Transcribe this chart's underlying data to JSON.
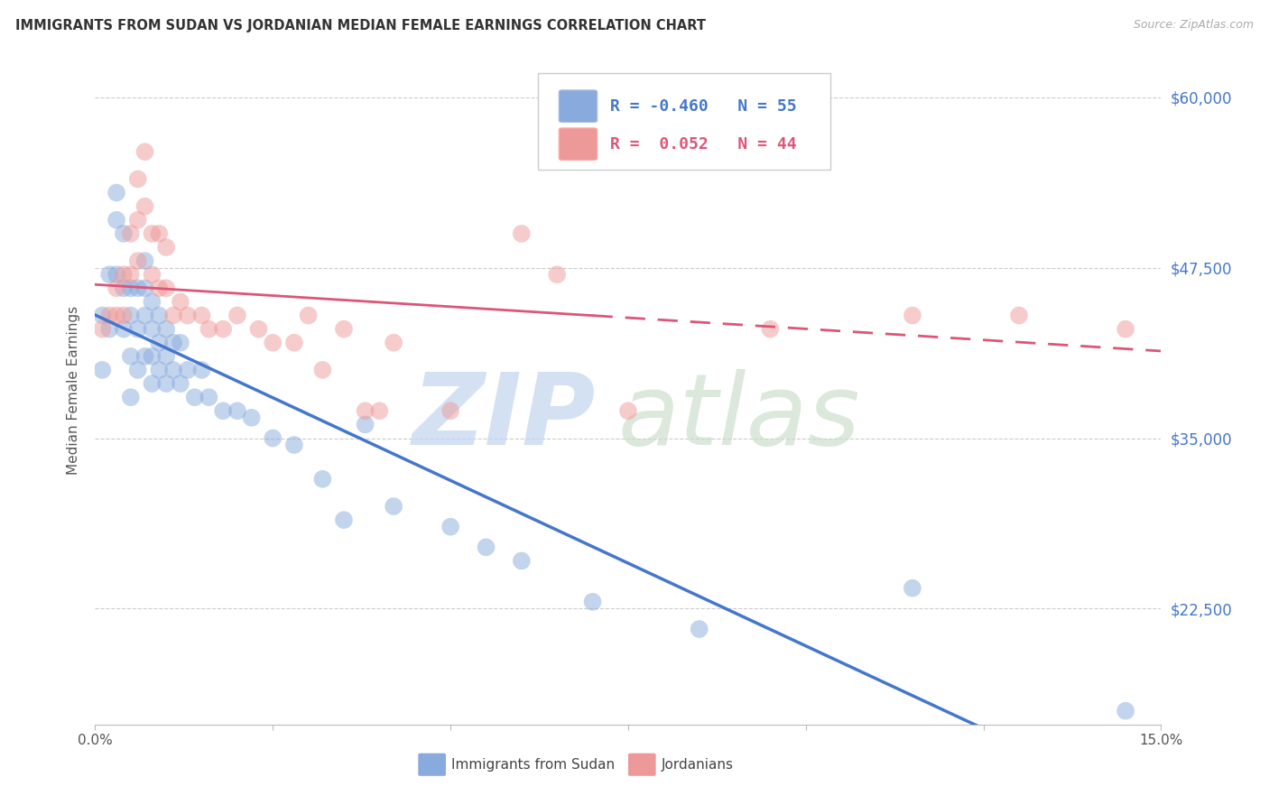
{
  "title": "IMMIGRANTS FROM SUDAN VS JORDANIAN MEDIAN FEMALE EARNINGS CORRELATION CHART",
  "source": "Source: ZipAtlas.com",
  "ylabel": "Median Female Earnings",
  "xlim": [
    0.0,
    0.15
  ],
  "ylim": [
    14000,
    63000
  ],
  "yticks_right": [
    22500,
    35000,
    47500,
    60000
  ],
  "yticklabels_right": [
    "$22,500",
    "$35,000",
    "$47,500",
    "$60,000"
  ],
  "grid_color": "#cccccc",
  "bg_color": "#ffffff",
  "blue_color": "#88aadd",
  "pink_color": "#ee9999",
  "blue_line_color": "#4477cc",
  "pink_line_color": "#dd5577",
  "legend_R1": "-0.460",
  "legend_N1": "55",
  "legend_R2": " 0.052",
  "legend_N2": "44",
  "blue_scatter_x": [
    0.001,
    0.001,
    0.002,
    0.002,
    0.003,
    0.003,
    0.003,
    0.004,
    0.004,
    0.004,
    0.005,
    0.005,
    0.005,
    0.005,
    0.006,
    0.006,
    0.006,
    0.007,
    0.007,
    0.007,
    0.007,
    0.008,
    0.008,
    0.008,
    0.008,
    0.009,
    0.009,
    0.009,
    0.01,
    0.01,
    0.01,
    0.011,
    0.011,
    0.012,
    0.012,
    0.013,
    0.014,
    0.015,
    0.016,
    0.018,
    0.02,
    0.022,
    0.025,
    0.028,
    0.032,
    0.035,
    0.038,
    0.042,
    0.05,
    0.055,
    0.06,
    0.07,
    0.085,
    0.115,
    0.145
  ],
  "blue_scatter_y": [
    44000,
    40000,
    47000,
    43000,
    53000,
    51000,
    47000,
    50000,
    46000,
    43000,
    46000,
    44000,
    41000,
    38000,
    46000,
    43000,
    40000,
    48000,
    46000,
    44000,
    41000,
    45000,
    43000,
    41000,
    39000,
    44000,
    42000,
    40000,
    43000,
    41000,
    39000,
    42000,
    40000,
    42000,
    39000,
    40000,
    38000,
    40000,
    38000,
    37000,
    37000,
    36500,
    35000,
    34500,
    32000,
    29000,
    36000,
    30000,
    28500,
    27000,
    26000,
    23000,
    21000,
    24000,
    15000
  ],
  "pink_scatter_x": [
    0.001,
    0.002,
    0.003,
    0.003,
    0.004,
    0.004,
    0.005,
    0.005,
    0.006,
    0.006,
    0.006,
    0.007,
    0.007,
    0.008,
    0.008,
    0.009,
    0.009,
    0.01,
    0.01,
    0.011,
    0.012,
    0.013,
    0.015,
    0.016,
    0.018,
    0.02,
    0.023,
    0.025,
    0.028,
    0.03,
    0.032,
    0.035,
    0.038,
    0.04,
    0.042,
    0.05,
    0.06,
    0.065,
    0.07,
    0.075,
    0.095,
    0.115,
    0.13,
    0.145
  ],
  "pink_scatter_y": [
    43000,
    44000,
    46000,
    44000,
    47000,
    44000,
    50000,
    47000,
    54000,
    51000,
    48000,
    56000,
    52000,
    50000,
    47000,
    50000,
    46000,
    49000,
    46000,
    44000,
    45000,
    44000,
    44000,
    43000,
    43000,
    44000,
    43000,
    42000,
    42000,
    44000,
    40000,
    43000,
    37000,
    37000,
    42000,
    37000,
    50000,
    47000,
    57000,
    37000,
    43000,
    44000,
    44000,
    43000
  ]
}
